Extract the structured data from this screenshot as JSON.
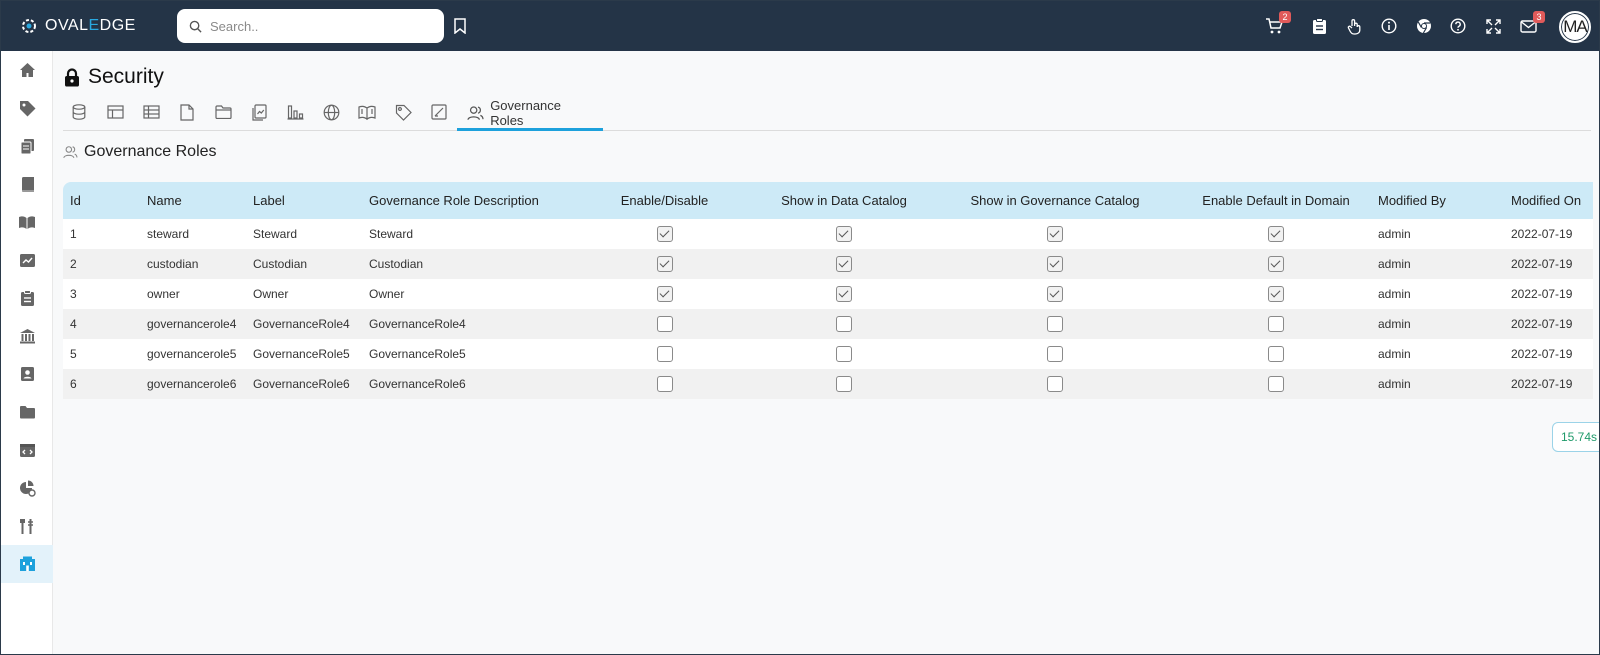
{
  "app": {
    "logo_text_pre": "OVAL",
    "logo_text_accent": "E",
    "logo_text_post": "DGE"
  },
  "search": {
    "placeholder": "Search.."
  },
  "topbar": {
    "cart_badge": "2",
    "mail_badge": "3",
    "avatar_initials": "MA"
  },
  "page": {
    "title": "Security"
  },
  "tabs": {
    "active_label": "Governance Roles"
  },
  "section": {
    "title": "Governance Roles"
  },
  "table": {
    "headers": {
      "id": "Id",
      "name": "Name",
      "label": "Label",
      "description": "Governance Role Description",
      "enable": "Enable/Disable",
      "data_catalog": "Show in Data Catalog",
      "gov_catalog": "Show in Governance Catalog",
      "default_domain": "Enable Default in Domain",
      "modified_by": "Modified By",
      "modified_on": "Modified On"
    },
    "rows": [
      {
        "id": "1",
        "name": "steward",
        "label": "Steward",
        "description": "Steward",
        "enable": true,
        "data_catalog": true,
        "gov_catalog": true,
        "default_domain": true,
        "modified_by": "admin",
        "modified_on": "2022-07-19"
      },
      {
        "id": "2",
        "name": "custodian",
        "label": "Custodian",
        "description": "Custodian",
        "enable": true,
        "data_catalog": true,
        "gov_catalog": true,
        "default_domain": true,
        "modified_by": "admin",
        "modified_on": "2022-07-19"
      },
      {
        "id": "3",
        "name": "owner",
        "label": "Owner",
        "description": "Owner",
        "enable": true,
        "data_catalog": true,
        "gov_catalog": true,
        "default_domain": true,
        "modified_by": "admin",
        "modified_on": "2022-07-19"
      },
      {
        "id": "4",
        "name": "governancerole4",
        "label": "GovernanceRole4",
        "description": "GovernanceRole4",
        "enable": false,
        "data_catalog": false,
        "gov_catalog": false,
        "default_domain": false,
        "modified_by": "admin",
        "modified_on": "2022-07-19"
      },
      {
        "id": "5",
        "name": "governancerole5",
        "label": "GovernanceRole5",
        "description": "GovernanceRole5",
        "enable": false,
        "data_catalog": false,
        "gov_catalog": false,
        "default_domain": false,
        "modified_by": "admin",
        "modified_on": "2022-07-19"
      },
      {
        "id": "6",
        "name": "governancerole6",
        "label": "GovernanceRole6",
        "description": "GovernanceRole6",
        "enable": false,
        "data_catalog": false,
        "gov_catalog": false,
        "default_domain": false,
        "modified_by": "admin",
        "modified_on": "2022-07-19"
      }
    ]
  },
  "timer": {
    "value": "15.74s"
  },
  "colors": {
    "topbar": "#243447",
    "accent": "#1da1dc",
    "header_row": "#cdeaf7"
  }
}
